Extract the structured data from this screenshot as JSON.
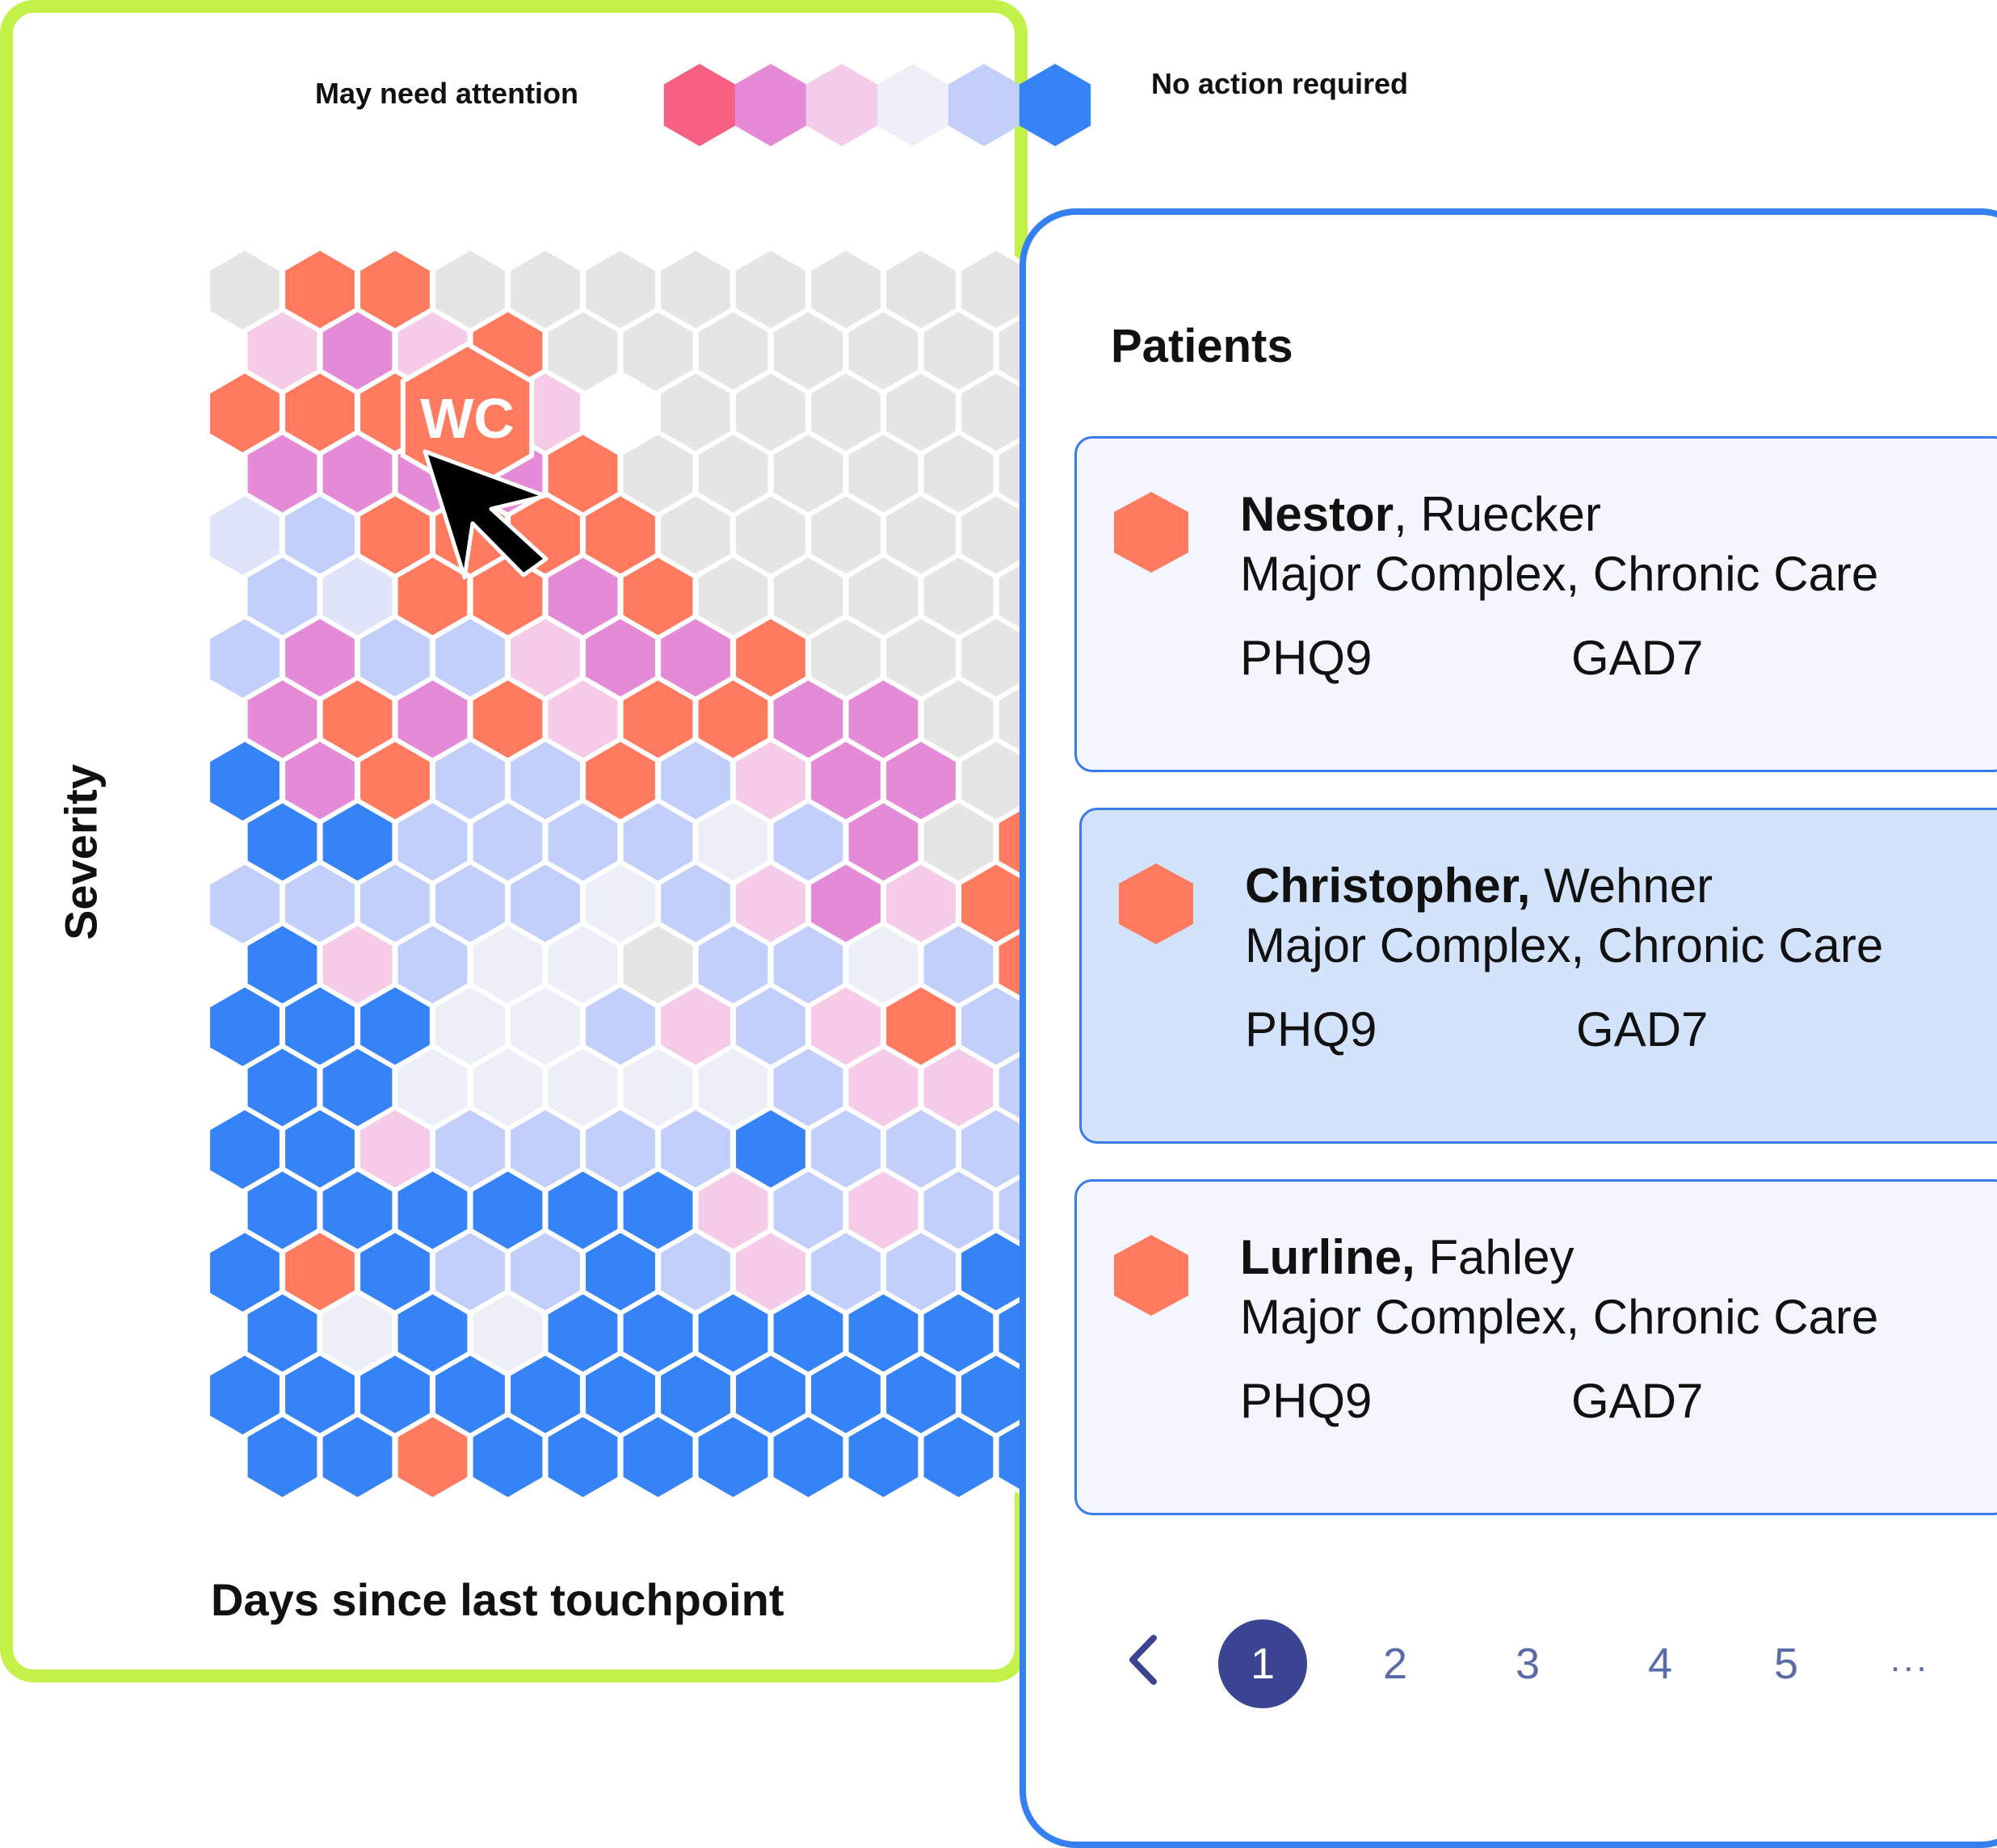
{
  "legend": {
    "attention_label": "May need attention",
    "ok_label": "No action required",
    "scale_colors": [
      "#f75f83",
      "#e68ad8",
      "#f4cbe8",
      "#eef0f8",
      "#c3cff9",
      "#3583f6"
    ]
  },
  "map": {
    "y_axis_label": "Severity",
    "x_axis_label": "Days since last touchpoint",
    "selected_initials": "WC",
    "colors": {
      "O": "#ff7a5f",
      "M": "#e58ad6",
      "P": "#f5cbe7",
      "W": "#eceff8",
      "L": "#c1cffa",
      "B": "#3583f6",
      "G": "#e5e5e5",
      "E": "#dfe4fb"
    },
    "rows": [
      "GOOGGGGGGGGGG",
      "PMPOGGGGGGGGG",
      "OOO P GGGGGGG",
      "MMMMOGGGGGGGG",
      "ELOOOOGGGGGGG",
      "LEOOMOGGGGGGG",
      "LMLLPMMOGGGGG",
      "MOMOPOOMMGGGO",
      "BMOLLOLPMMGGG",
      "BBLLLLWLMGOGG",
      "LLLLLWLPMPOGO",
      "BPLWWGLLWLOMM",
      "BBBWWLPLPOLOO",
      "BBWWWWWLPPLOO",
      "BBPLLLLBLLLWO",
      "BBBBBBPLPLLWW",
      "BOBLLBLPLLBBB",
      "BWBWBBBBBBBBB",
      "BBBBBBBBBBBBB",
      "BBOBBBBBBBBBB"
    ]
  },
  "panel": {
    "title": "Patients",
    "patients": [
      {
        "first": "Nestor",
        "sep": ",",
        "last": "Ruecker",
        "complexity": "Major Complex, Chronic Care",
        "m1": "PHQ9",
        "m2": "GAD7",
        "color": "#ff7a5f",
        "selected": false
      },
      {
        "first": "Christopher,",
        "sep": "",
        "last": "Wehner",
        "complexity": "Major Complex, Chronic Care",
        "m1": "PHQ9",
        "m2": "GAD7",
        "color": "#ff7a5f",
        "selected": true
      },
      {
        "first": "Lurline,",
        "sep": "",
        "last": "Fahley",
        "complexity": "Major Complex, Chronic Care",
        "m1": "PHQ9",
        "m2": "GAD7",
        "color": "#ff7a5f",
        "selected": false
      }
    ],
    "pagination": {
      "pages": [
        "1",
        "2",
        "3",
        "4",
        "5"
      ],
      "current": "1",
      "ellipsis": "..."
    }
  }
}
